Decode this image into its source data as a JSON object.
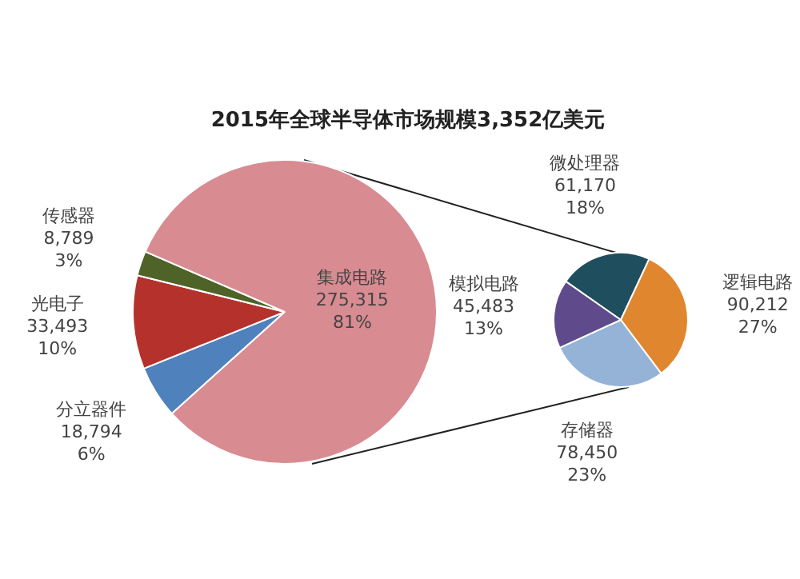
{
  "chart_data": [
    {
      "type": "pie",
      "title": "2015年全球半导体市场规模3,352亿美元",
      "categories": [
        "分立器件",
        "光电子",
        "传感器",
        "集成电路"
      ],
      "values": [
        18794,
        33493,
        8789,
        275315
      ],
      "colors": [
        "#4f81bd",
        "#b5312c",
        "#4f6228",
        "#d98b92"
      ],
      "value_labels": [
        "18,794\n6%",
        "33,493\n10%",
        "8,789\n3%",
        "275,315\n81%"
      ],
      "legend": false
    },
    {
      "type": "pie",
      "categories": [
        "微处理器",
        "逻辑电路",
        "存储器",
        "模拟电路"
      ],
      "values": [
        61170,
        90212,
        78450,
        45483
      ],
      "colors": [
        "#1f4e5f",
        "#e0862e",
        "#95b3d7",
        "#5f4b8b"
      ],
      "value_labels": [
        "61,170\n18%",
        "90,212\n27%",
        "78,450\n23%",
        "45,483\n13%"
      ],
      "legend": false
    }
  ]
}
